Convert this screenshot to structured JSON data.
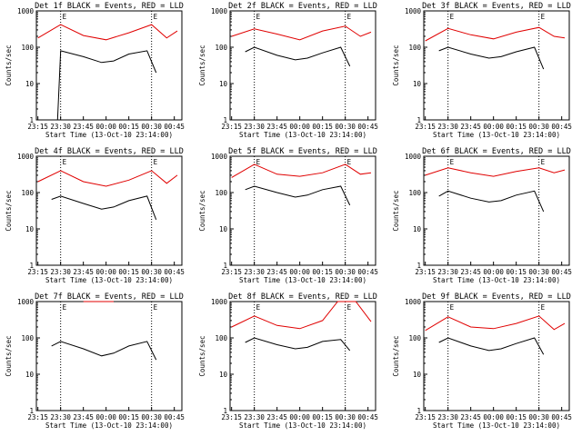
{
  "shared": {
    "xlabel": "Start Time (13-Oct-10 23:14:00)",
    "ylabel": "Counts/sec",
    "x_ticks": [
      "23:15",
      "23:30",
      "23:45",
      "00:00",
      "00:15",
      "00:30",
      "00:45"
    ],
    "y_ticks": [
      "1",
      "10",
      "100",
      "1000"
    ],
    "marker_label": "E"
  },
  "colors": {
    "events": "#000000",
    "lld": "#e00000",
    "axes": "#000000"
  },
  "chart_data": [
    {
      "type": "line",
      "title": "Det 1f BLACK = Events, RED = LLD",
      "xlim": [
        "23:14",
        "00:50"
      ],
      "ylim": [
        1,
        1000
      ],
      "yscale": "log",
      "markers": [
        "23:30",
        "00:30"
      ],
      "series": [
        {
          "name": "Events",
          "color": "#000000",
          "x": [
            "23:28",
            "23:30",
            "23:45",
            "23:57",
            "00:05",
            "00:15",
            "00:27",
            "00:33"
          ],
          "y": [
            1,
            80,
            55,
            38,
            42,
            65,
            80,
            20
          ]
        },
        {
          "name": "LLD",
          "color": "#e00000",
          "x": [
            "23:15",
            "23:30",
            "23:45",
            "00:00",
            "00:15",
            "00:30",
            "00:40",
            "00:47"
          ],
          "y": [
            180,
            420,
            210,
            160,
            250,
            420,
            180,
            280
          ]
        }
      ]
    },
    {
      "type": "line",
      "title": "Det 2f BLACK = Events, RED = LLD",
      "xlim": [
        "23:14",
        "00:50"
      ],
      "ylim": [
        1,
        1000
      ],
      "yscale": "log",
      "markers": [
        "23:30",
        "00:30"
      ],
      "series": [
        {
          "name": "Events",
          "color": "#000000",
          "x": [
            "23:24",
            "23:30",
            "23:45",
            "23:57",
            "00:05",
            "00:15",
            "00:27",
            "00:33"
          ],
          "y": [
            75,
            100,
            60,
            45,
            50,
            70,
            100,
            30
          ]
        },
        {
          "name": "LLD",
          "color": "#e00000",
          "x": [
            "23:15",
            "23:30",
            "23:45",
            "00:00",
            "00:15",
            "00:30",
            "00:40",
            "00:47"
          ],
          "y": [
            200,
            320,
            230,
            160,
            280,
            380,
            200,
            260
          ]
        }
      ]
    },
    {
      "type": "line",
      "title": "Det 3f BLACK = Events, RED = LLD",
      "xlim": [
        "23:14",
        "00:50"
      ],
      "ylim": [
        1,
        1000
      ],
      "yscale": "log",
      "markers": [
        "23:30",
        "00:30"
      ],
      "series": [
        {
          "name": "Events",
          "color": "#000000",
          "x": [
            "23:24",
            "23:30",
            "23:45",
            "23:57",
            "00:05",
            "00:15",
            "00:27",
            "00:33"
          ],
          "y": [
            80,
            100,
            65,
            50,
            55,
            75,
            100,
            25
          ]
        },
        {
          "name": "LLD",
          "color": "#e00000",
          "x": [
            "23:15",
            "23:30",
            "23:45",
            "00:00",
            "00:15",
            "00:30",
            "00:40",
            "00:47"
          ],
          "y": [
            150,
            330,
            220,
            170,
            260,
            350,
            200,
            180
          ]
        }
      ]
    },
    {
      "type": "line",
      "title": "Det 4f BLACK = Events, RED = LLD",
      "xlim": [
        "23:14",
        "00:50"
      ],
      "ylim": [
        1,
        1000
      ],
      "yscale": "log",
      "markers": [
        "23:30",
        "00:30"
      ],
      "series": [
        {
          "name": "Events",
          "color": "#000000",
          "x": [
            "23:24",
            "23:30",
            "23:45",
            "23:57",
            "00:05",
            "00:15",
            "00:27",
            "00:33"
          ],
          "y": [
            65,
            80,
            50,
            35,
            40,
            60,
            80,
            18
          ]
        },
        {
          "name": "LLD",
          "color": "#e00000",
          "x": [
            "23:15",
            "23:30",
            "23:45",
            "00:00",
            "00:15",
            "00:30",
            "00:40",
            "00:47"
          ],
          "y": [
            200,
            400,
            200,
            150,
            220,
            400,
            180,
            300
          ]
        }
      ]
    },
    {
      "type": "line",
      "title": "Det 5f BLACK = Events, RED = LLD",
      "xlim": [
        "23:14",
        "00:50"
      ],
      "ylim": [
        1,
        1000
      ],
      "yscale": "log",
      "markers": [
        "23:30",
        "00:30"
      ],
      "series": [
        {
          "name": "Events",
          "color": "#000000",
          "x": [
            "23:24",
            "23:30",
            "23:45",
            "23:57",
            "00:05",
            "00:15",
            "00:27",
            "00:33"
          ],
          "y": [
            120,
            150,
            100,
            75,
            85,
            120,
            150,
            45
          ]
        },
        {
          "name": "LLD",
          "color": "#e00000",
          "x": [
            "23:15",
            "23:30",
            "23:45",
            "00:00",
            "00:15",
            "00:30",
            "00:40",
            "00:47"
          ],
          "y": [
            260,
            600,
            320,
            280,
            350,
            600,
            320,
            350
          ]
        }
      ]
    },
    {
      "type": "line",
      "title": "Det 6f BLACK = Events, RED = LLD",
      "xlim": [
        "23:14",
        "00:50"
      ],
      "ylim": [
        1,
        1000
      ],
      "yscale": "log",
      "markers": [
        "23:30",
        "00:30"
      ],
      "series": [
        {
          "name": "Events",
          "color": "#000000",
          "x": [
            "23:24",
            "23:30",
            "23:45",
            "23:57",
            "00:05",
            "00:15",
            "00:27",
            "00:33"
          ],
          "y": [
            80,
            110,
            70,
            55,
            60,
            85,
            110,
            30
          ]
        },
        {
          "name": "LLD",
          "color": "#e00000",
          "x": [
            "23:15",
            "23:30",
            "23:45",
            "00:00",
            "00:15",
            "00:30",
            "00:40",
            "00:47"
          ],
          "y": [
            300,
            480,
            350,
            280,
            380,
            480,
            350,
            420
          ]
        }
      ]
    },
    {
      "type": "line",
      "title": "Det 7f BLACK = Events, RED = LLD",
      "xlim": [
        "23:14",
        "00:50"
      ],
      "ylim": [
        1,
        1000
      ],
      "yscale": "log",
      "markers": [
        "23:30",
        "00:30"
      ],
      "series": [
        {
          "name": "Events",
          "color": "#000000",
          "x": [
            "23:24",
            "23:30",
            "23:45",
            "23:57",
            "00:05",
            "00:15",
            "00:27",
            "00:33"
          ],
          "y": [
            60,
            80,
            50,
            32,
            38,
            60,
            80,
            25
          ]
        },
        {
          "name": "LLD",
          "color": "#e00000",
          "x": [
            "23:45",
            "23:57",
            "00:05"
          ],
          "y": [
            1000,
            1000,
            1000
          ]
        }
      ]
    },
    {
      "type": "line",
      "title": "Det 8f BLACK = Events, RED = LLD",
      "xlim": [
        "23:14",
        "00:50"
      ],
      "ylim": [
        1,
        1000
      ],
      "yscale": "log",
      "markers": [
        "23:30",
        "00:30"
      ],
      "series": [
        {
          "name": "Events",
          "color": "#000000",
          "x": [
            "23:24",
            "23:30",
            "23:45",
            "23:57",
            "00:05",
            "00:15",
            "00:27",
            "00:33"
          ],
          "y": [
            75,
            100,
            65,
            50,
            55,
            80,
            90,
            45
          ]
        },
        {
          "name": "LLD",
          "color": "#e00000",
          "x": [
            "23:15",
            "23:30",
            "23:45",
            "00:00",
            "00:15",
            "00:25",
            "00:37",
            "00:47"
          ],
          "y": [
            200,
            400,
            220,
            180,
            300,
            1000,
            1000,
            280
          ]
        }
      ]
    },
    {
      "type": "line",
      "title": "Det 9f BLACK = Events, RED = LLD",
      "xlim": [
        "23:14",
        "00:50"
      ],
      "ylim": [
        1,
        1000
      ],
      "yscale": "log",
      "markers": [
        "23:30",
        "00:30"
      ],
      "series": [
        {
          "name": "Events",
          "color": "#000000",
          "x": [
            "23:24",
            "23:30",
            "23:45",
            "23:57",
            "00:05",
            "00:15",
            "00:27",
            "00:33"
          ],
          "y": [
            75,
            100,
            60,
            45,
            50,
            70,
            100,
            35
          ]
        },
        {
          "name": "LLD",
          "color": "#e00000",
          "x": [
            "23:15",
            "23:30",
            "23:45",
            "00:00",
            "00:15",
            "00:30",
            "00:40",
            "00:47"
          ],
          "y": [
            160,
            380,
            200,
            180,
            250,
            400,
            170,
            250
          ]
        }
      ]
    }
  ]
}
